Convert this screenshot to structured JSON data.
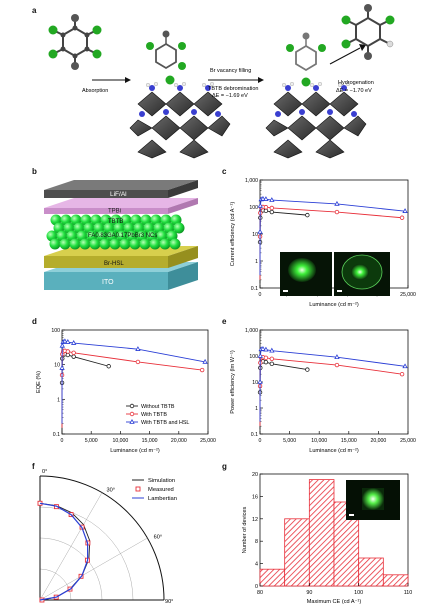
{
  "panels": {
    "a": {
      "letter": "a",
      "step_absorption": "Absorption",
      "step_vacancy": "Br vacancy filling",
      "step_debromination": "TBTB debromination",
      "energy1": "ΔE = −1.69 eV",
      "step_hydrogenation": "Hydrogenation",
      "energy2": "ΔE = −1.70 eV"
    },
    "b": {
      "letter": "b",
      "layers": [
        "LiF/Al",
        "TPBi",
        "TBTB",
        "FA0.83GA0.17PbBr3 NCs",
        "Br-HSL",
        "ITO"
      ]
    },
    "c": {
      "letter": "c",
      "ylabel": "Current efficiency (cd A⁻¹)",
      "xlabel": "Luminance (cd m⁻²)"
    },
    "d": {
      "letter": "d",
      "ylabel": "EQE (%)",
      "xlabel": "Luminance (cd m⁻²)",
      "legend": [
        "Without TBTB",
        "With TBTB",
        "With TBTB and HSL"
      ]
    },
    "e": {
      "letter": "e",
      "ylabel": "Power efficiency (lm W⁻¹)",
      "xlabel": "Luminance (cd m⁻²)"
    },
    "f": {
      "letter": "f",
      "legend": [
        "Simulation",
        "Measured",
        "Lambertian"
      ],
      "angle_labels": [
        "0°",
        "30°",
        "60°",
        "90°"
      ]
    },
    "g": {
      "letter": "g",
      "ylabel": "Number of devices",
      "xlabel": "Maximum CE (cd A⁻¹)"
    }
  },
  "colors": {
    "without": "#222222",
    "with_tbtb": "#e8303a",
    "with_hsl": "#2b3fd6",
    "hist": "#e8303a"
  },
  "chart_data": [
    {
      "id": "c",
      "type": "line",
      "xlabel": "Luminance (cd m⁻²)",
      "ylabel": "Current efficiency (cd A⁻¹)",
      "xlim": [
        0,
        25000
      ],
      "ylim": [
        0.1,
        1000
      ],
      "yscale": "log",
      "xticks": [
        "0",
        "5,000",
        "10,000",
        "15,000",
        "20,000",
        "25,000"
      ],
      "yticks": [
        "0.1",
        "1",
        "10",
        "100",
        "1,000"
      ],
      "series": [
        {
          "color": "#222222",
          "x": [
            0,
            10,
            50,
            200,
            500,
            1000,
            2000,
            8000
          ],
          "y": [
            0.15,
            5,
            40,
            70,
            75,
            72,
            65,
            50
          ]
        },
        {
          "color": "#e8303a",
          "x": [
            0,
            10,
            50,
            200,
            500,
            1000,
            2000,
            13000,
            24000
          ],
          "y": [
            0.2,
            8,
            60,
            95,
            100,
            98,
            92,
            65,
            40
          ]
        },
        {
          "color": "#2b3fd6",
          "x": [
            0,
            10,
            50,
            200,
            500,
            1000,
            2000,
            13000,
            24500
          ],
          "y": [
            0.3,
            12,
            110,
            190,
            200,
            195,
            180,
            130,
            70
          ]
        }
      ]
    },
    {
      "id": "d",
      "type": "line",
      "xlabel": "Luminance (cd m⁻²)",
      "ylabel": "EQE (%)",
      "xlim": [
        0,
        25000
      ],
      "ylim": [
        0.1,
        100
      ],
      "yscale": "log",
      "xticks": [
        "0",
        "5,000",
        "10,000",
        "15,000",
        "20,000",
        "25,000"
      ],
      "yticks": [
        "0.1",
        "1",
        "10",
        "100"
      ],
      "series": [
        {
          "name": "Without TBTB",
          "color": "#222222",
          "x": [
            0,
            10,
            50,
            200,
            500,
            1000,
            2000,
            8000
          ],
          "y": [
            0.12,
            3,
            15,
            19,
            20,
            19,
            17,
            9
          ]
        },
        {
          "name": "With TBTB",
          "color": "#e8303a",
          "x": [
            0,
            10,
            50,
            200,
            500,
            1000,
            2000,
            13000,
            24000
          ],
          "y": [
            0.15,
            5,
            20,
            24,
            25,
            24,
            22,
            12,
            7
          ]
        },
        {
          "name": "With TBTB and HSL",
          "color": "#2b3fd6",
          "x": [
            0,
            10,
            50,
            200,
            500,
            1000,
            2000,
            13000,
            24500
          ],
          "y": [
            0.2,
            8,
            35,
            45,
            47,
            45,
            42,
            28,
            12
          ]
        }
      ]
    },
    {
      "id": "e",
      "type": "line",
      "xlabel": "Luminance (cd m⁻²)",
      "ylabel": "Power efficiency (lm W⁻¹)",
      "xlim": [
        0,
        25000
      ],
      "ylim": [
        0.1,
        1000
      ],
      "yscale": "log",
      "xticks": [
        "0",
        "5,000",
        "10,000",
        "15,000",
        "20,000",
        "25,000"
      ],
      "yticks": [
        "0.1",
        "1",
        "10",
        "100",
        "1,000"
      ],
      "series": [
        {
          "color": "#222222",
          "x": [
            0,
            10,
            50,
            200,
            500,
            1000,
            2000,
            8000
          ],
          "y": [
            0.15,
            4,
            35,
            60,
            62,
            58,
            50,
            30
          ]
        },
        {
          "color": "#e8303a",
          "x": [
            0,
            10,
            50,
            200,
            500,
            1000,
            2000,
            13000,
            24000
          ],
          "y": [
            0.2,
            7,
            55,
            85,
            90,
            85,
            78,
            45,
            20
          ]
        },
        {
          "color": "#2b3fd6",
          "x": [
            0,
            10,
            50,
            200,
            500,
            1000,
            2000,
            13000,
            24500
          ],
          "y": [
            0.3,
            10,
            100,
            180,
            185,
            175,
            160,
            90,
            40
          ]
        }
      ]
    },
    {
      "id": "f",
      "type": "line",
      "coordinates": "polar",
      "angle_labels": [
        "0°",
        "30°",
        "60°",
        "90°"
      ],
      "series": [
        {
          "name": "Simulation",
          "color": "#222222",
          "theta": [
            0,
            10,
            20,
            30,
            40,
            50,
            60,
            70,
            80,
            90
          ],
          "r": [
            1.0,
            0.99,
            0.96,
            0.9,
            0.8,
            0.66,
            0.5,
            0.33,
            0.17,
            0.02
          ]
        },
        {
          "name": "Measured",
          "color": "#e8303a",
          "theta": [
            0,
            10,
            20,
            30,
            40,
            50,
            60,
            70,
            80,
            90
          ],
          "r": [
            1.0,
            0.98,
            0.94,
            0.87,
            0.77,
            0.64,
            0.49,
            0.33,
            0.17,
            0.02
          ]
        },
        {
          "name": "Lambertian",
          "color": "#2b3fd6",
          "theta": [
            0,
            10,
            20,
            30,
            40,
            50,
            60,
            70,
            80,
            90
          ],
          "r": [
            1.0,
            0.985,
            0.94,
            0.866,
            0.766,
            0.643,
            0.5,
            0.342,
            0.174,
            0.0
          ]
        }
      ]
    },
    {
      "id": "g",
      "type": "bar",
      "xlabel": "Maximum CE (cd A⁻¹)",
      "ylabel": "Number of devices",
      "bin_edges": [
        80,
        85,
        90,
        95,
        100,
        105,
        110
      ],
      "values": [
        3,
        12,
        19,
        15,
        5,
        2
      ],
      "xlim": [
        80,
        110
      ],
      "ylim": [
        0,
        20
      ],
      "xticks": [
        "80",
        "90",
        "100",
        "110"
      ],
      "yticks": [
        "0",
        "4",
        "8",
        "12",
        "16",
        "20"
      ]
    }
  ]
}
